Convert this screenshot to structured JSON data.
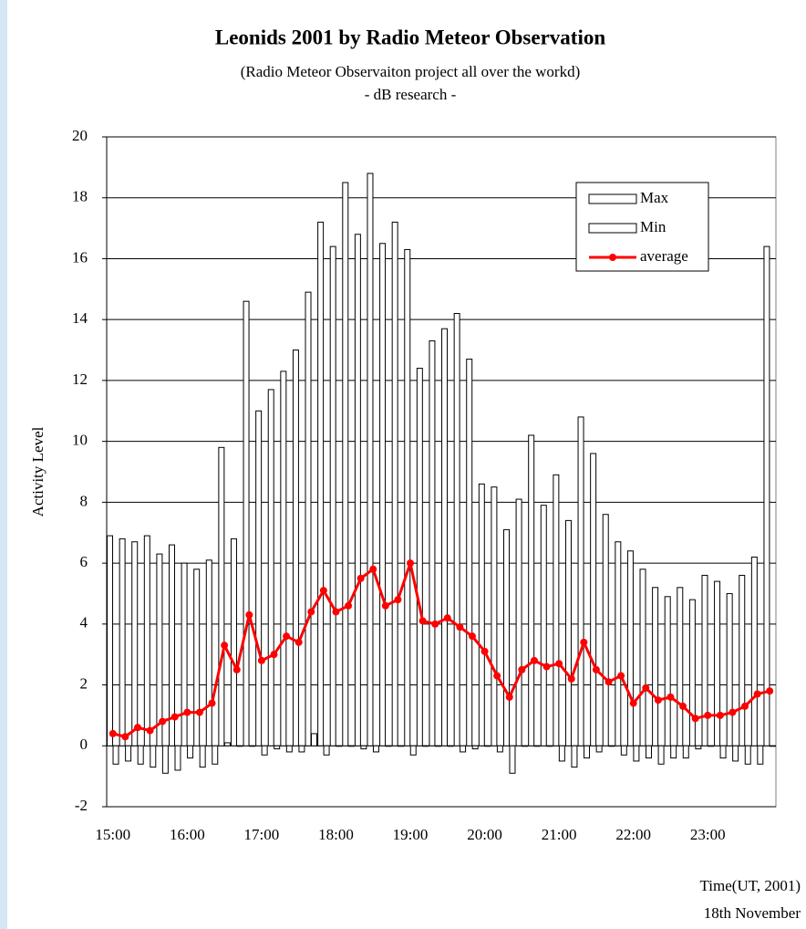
{
  "chart_data": {
    "type": "bar",
    "title": "Leonids 2001 by Radio Meteor Observation",
    "subtitles": [
      "(Radio Meteor Observaiton project all over the workd)",
      "- dB research -"
    ],
    "ylabel": "Activity Level",
    "annotations": [
      "Time(UT, 2001)",
      "18th November"
    ],
    "categories": [
      "15:00",
      null,
      null,
      null,
      null,
      null,
      "16:00",
      null,
      null,
      null,
      null,
      null,
      "17:00",
      null,
      null,
      null,
      null,
      null,
      "18:00",
      null,
      null,
      null,
      null,
      null,
      "19:00",
      null,
      null,
      null,
      null,
      null,
      "20:00",
      null,
      null,
      null,
      null,
      null,
      "21:00",
      null,
      null,
      null,
      null,
      null,
      "22:00",
      null,
      null,
      null,
      null,
      null,
      "23:00",
      null,
      null,
      null,
      null,
      null
    ],
    "series": [
      {
        "name": "Max",
        "color": "#ffffff",
        "values": [
          6.9,
          6.8,
          6.7,
          6.9,
          6.3,
          6.6,
          6.0,
          5.8,
          6.1,
          9.8,
          6.8,
          14.6,
          11.0,
          11.7,
          12.3,
          13.0,
          14.9,
          17.2,
          16.4,
          18.5,
          16.8,
          18.8,
          16.5,
          17.2,
          16.3,
          12.4,
          13.3,
          13.7,
          14.2,
          12.7,
          8.6,
          8.5,
          7.1,
          8.1,
          10.2,
          7.9,
          8.9,
          7.4,
          10.8,
          9.6,
          7.6,
          6.7,
          6.4,
          5.8,
          5.2,
          4.9,
          5.2,
          4.8,
          5.6,
          5.4,
          5.0,
          5.6,
          6.2,
          16.4
        ]
      },
      {
        "name": "Min",
        "color": "#ffffff",
        "values": [
          -0.6,
          -0.5,
          -0.6,
          -0.7,
          -0.9,
          -0.8,
          -0.4,
          -0.7,
          -0.6,
          0.1,
          0,
          0,
          -0.3,
          -0.1,
          -0.2,
          -0.2,
          0.4,
          -0.3,
          0,
          0,
          -0.1,
          -0.2,
          0,
          0,
          -0.3,
          0,
          0,
          0,
          -0.2,
          -0.1,
          0,
          -0.2,
          -0.9,
          0,
          0,
          0,
          -0.5,
          -0.7,
          -0.4,
          -0.2,
          0,
          -0.3,
          -0.5,
          -0.4,
          -0.6,
          -0.4,
          -0.4,
          -0.1,
          0,
          -0.4,
          -0.5,
          -0.6,
          -0.6,
          0
        ]
      },
      {
        "name": "average",
        "type": "line",
        "color": "#ff0000",
        "values": [
          0.4,
          0.3,
          0.6,
          0.5,
          0.8,
          0.95,
          1.1,
          1.1,
          1.4,
          3.3,
          2.5,
          4.3,
          2.8,
          3.0,
          3.6,
          3.4,
          4.4,
          5.1,
          4.4,
          4.6,
          5.5,
          5.8,
          4.6,
          4.8,
          6.0,
          4.1,
          4.0,
          4.2,
          3.9,
          3.6,
          3.1,
          2.3,
          1.6,
          2.5,
          2.8,
          2.6,
          2.7,
          2.2,
          3.4,
          2.5,
          2.1,
          2.3,
          1.4,
          1.9,
          1.5,
          1.6,
          1.3,
          0.9,
          1.0,
          1.0,
          1.1,
          1.3,
          1.7,
          1.8
        ]
      }
    ],
    "ylim": [
      -2,
      20
    ],
    "yticks": [
      -2,
      0,
      2,
      4,
      6,
      8,
      10,
      12,
      14,
      16,
      18,
      20
    ],
    "grid": true,
    "legend": "upper right"
  }
}
